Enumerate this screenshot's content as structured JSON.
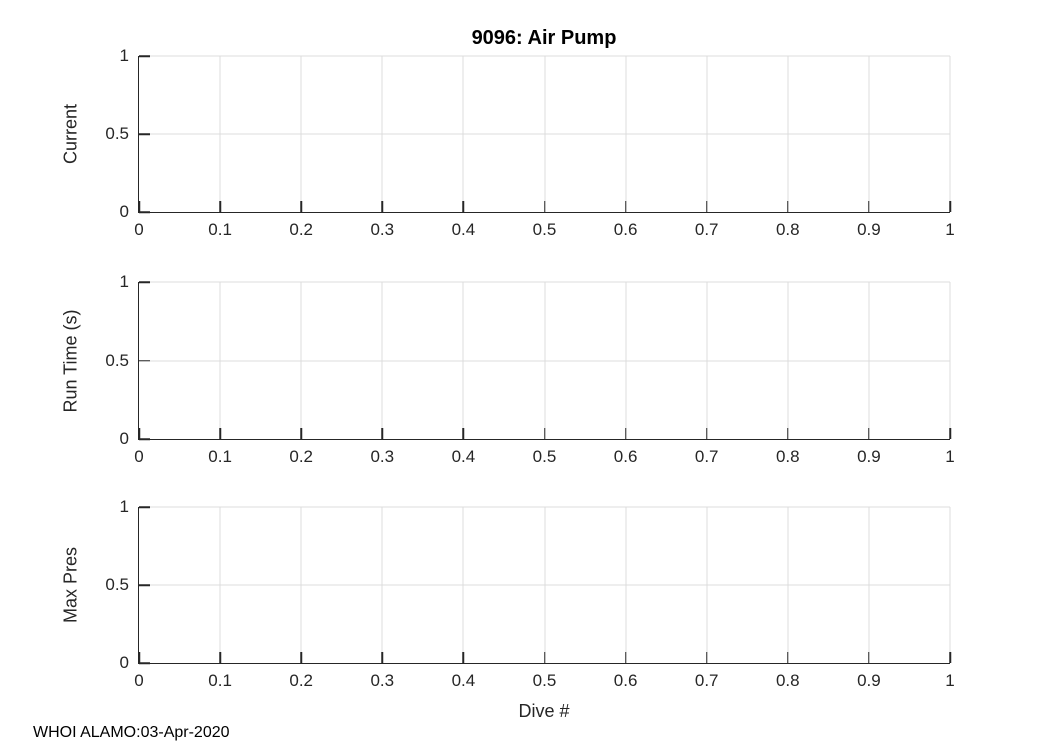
{
  "figure": {
    "title": "9096: Air Pump",
    "xlabel": "Dive #",
    "footer": "WHOI ALAMO:03-Apr-2020"
  },
  "colors": {
    "axis": "#262626",
    "grid": "#dcdcdc",
    "tick_text": "#262626",
    "title_text": "#000000",
    "background": "#ffffff"
  },
  "chart_data": [
    {
      "type": "line",
      "title": "9096: Air Pump",
      "ylabel": "Current",
      "xlabel": "",
      "xlim": [
        0,
        1
      ],
      "ylim": [
        0,
        1
      ],
      "x_ticks": [
        0,
        0.1,
        0.2,
        0.3,
        0.4,
        0.5,
        0.6,
        0.7,
        0.8,
        0.9,
        1
      ],
      "x_tick_labels": [
        "0",
        "0.1",
        "0.2",
        "0.3",
        "0.4",
        "0.5",
        "0.6",
        "0.7",
        "0.8",
        "0.9",
        "1"
      ],
      "y_ticks": [
        0,
        0.5,
        1
      ],
      "y_tick_labels": [
        "0",
        "0.5",
        "1"
      ],
      "grid": true,
      "legend": null,
      "series": []
    },
    {
      "type": "line",
      "title": "",
      "ylabel": "Run Time (s)",
      "xlabel": "",
      "xlim": [
        0,
        1
      ],
      "ylim": [
        0,
        1
      ],
      "x_ticks": [
        0,
        0.1,
        0.2,
        0.3,
        0.4,
        0.5,
        0.6,
        0.7,
        0.8,
        0.9,
        1
      ],
      "x_tick_labels": [
        "0",
        "0.1",
        "0.2",
        "0.3",
        "0.4",
        "0.5",
        "0.6",
        "0.7",
        "0.8",
        "0.9",
        "1"
      ],
      "y_ticks": [
        0,
        0.5,
        1
      ],
      "y_tick_labels": [
        "0",
        "0.5",
        "1"
      ],
      "grid": true,
      "legend": null,
      "series": []
    },
    {
      "type": "line",
      "title": "",
      "ylabel": "Max Pres",
      "xlabel": "Dive #",
      "xlim": [
        0,
        1
      ],
      "ylim": [
        0,
        1
      ],
      "x_ticks": [
        0,
        0.1,
        0.2,
        0.3,
        0.4,
        0.5,
        0.6,
        0.7,
        0.8,
        0.9,
        1
      ],
      "x_tick_labels": [
        "0",
        "0.1",
        "0.2",
        "0.3",
        "0.4",
        "0.5",
        "0.6",
        "0.7",
        "0.8",
        "0.9",
        "1"
      ],
      "y_ticks": [
        0,
        0.5,
        1
      ],
      "y_tick_labels": [
        "0",
        "0.5",
        "1"
      ],
      "grid": true,
      "legend": null,
      "series": []
    }
  ]
}
